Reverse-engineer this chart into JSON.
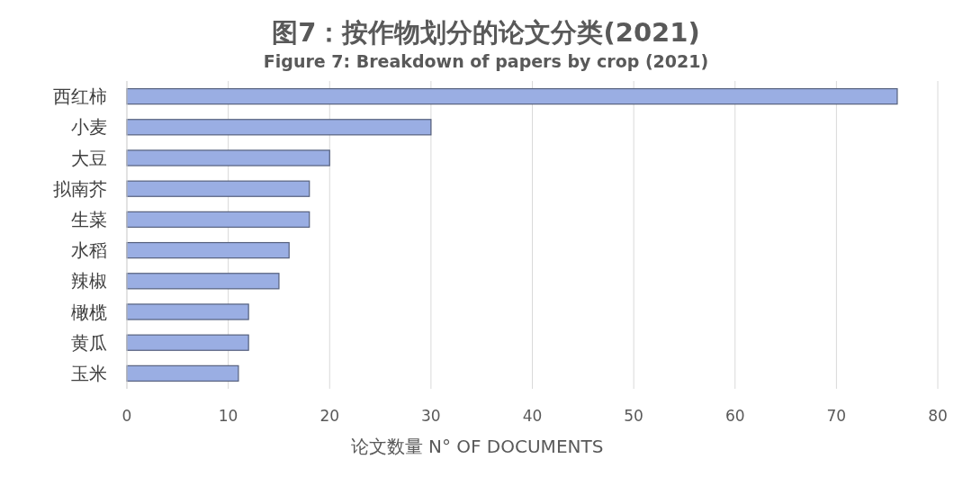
{
  "chart_data": {
    "type": "bar",
    "orientation": "horizontal",
    "title": "图7：按作物划分的论文分类(2021)",
    "subtitle": "Figure 7: Breakdown of papers by crop (2021)",
    "xlabel": "论文数量  N° OF DOCUMENTS",
    "categories": [
      "西红柿",
      "小麦",
      "大豆",
      "拟南芥",
      "生菜",
      "水稻",
      "辣椒",
      "橄榄",
      "黄瓜",
      "玉米"
    ],
    "values": [
      76,
      30,
      20,
      18,
      18,
      16,
      15,
      12,
      12,
      11
    ],
    "color": "#9aaee3",
    "xlim": [
      0,
      80
    ],
    "xticks": [
      0,
      10,
      20,
      30,
      40,
      50,
      60,
      70,
      80
    ],
    "grid": "x"
  }
}
